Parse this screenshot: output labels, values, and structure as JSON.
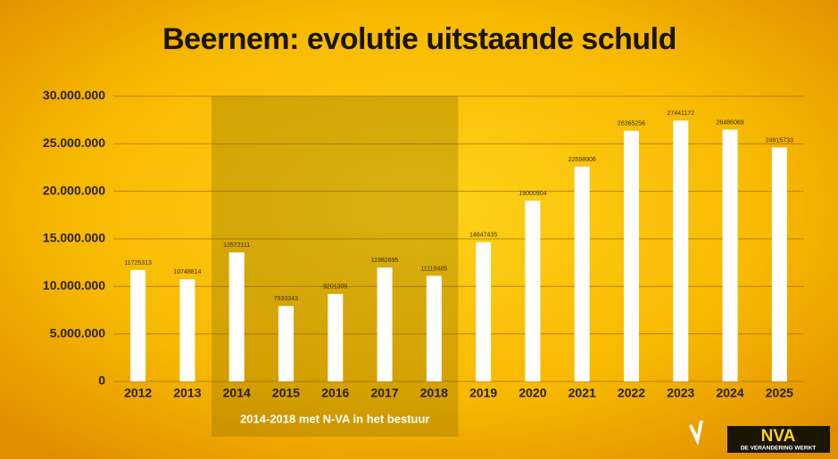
{
  "chart_data": {
    "type": "bar",
    "title": "Beernem: evolutie uitstaande schuld",
    "categories": [
      "2012",
      "2013",
      "2014",
      "2015",
      "2016",
      "2017",
      "2018",
      "2019",
      "2020",
      "2021",
      "2022",
      "2023",
      "2024",
      "2025"
    ],
    "values": [
      11725313,
      10748814,
      13572111,
      7933343,
      9201309,
      11982695,
      11110485,
      14647435,
      19000904,
      22598906,
      26365256,
      27441172,
      26486069,
      24615733
    ],
    "color": "#ffffff",
    "ylim": [
      0,
      30000000
    ],
    "yticks": [
      {
        "value": 0,
        "label": "0"
      },
      {
        "value": 5000000,
        "label": "5.000.000"
      },
      {
        "value": 10000000,
        "label": "10.000.000"
      },
      {
        "value": 15000000,
        "label": "15.000.000"
      },
      {
        "value": 20000000,
        "label": "20.000.000"
      },
      {
        "value": 25000000,
        "label": "25.000.000"
      },
      {
        "value": 30000000,
        "label": "30.000.000"
      }
    ],
    "grid": true,
    "highlight": {
      "start": "2014",
      "end": "2018",
      "text": "2014-2018 met N-VA in het bestuur"
    },
    "logo": {
      "name": "NVA",
      "slogan": "DE VERANDERING WERKT"
    }
  }
}
